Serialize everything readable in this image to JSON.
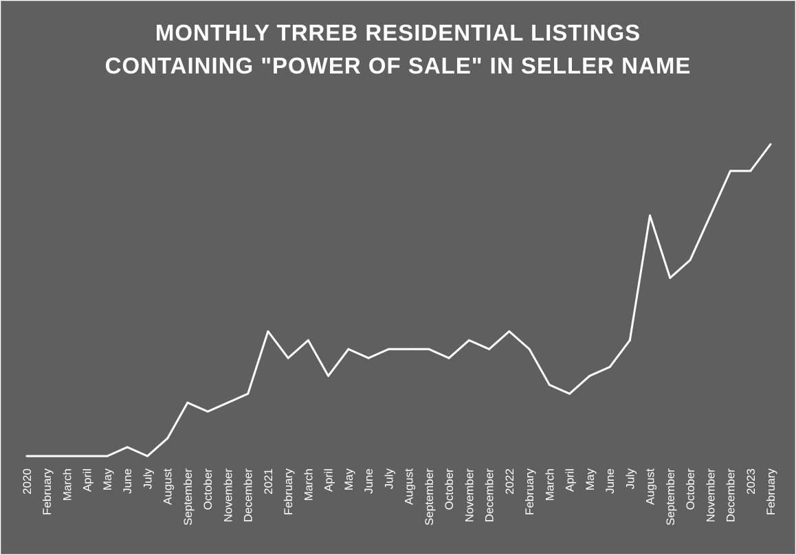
{
  "chart_data": {
    "type": "line",
    "title": [
      "MONTHLY TRREB RESIDENTIAL LISTINGS",
      "CONTAINING \"POWER OF SALE\" IN SELLER NAME"
    ],
    "xlabel": "",
    "ylabel": "",
    "categories": [
      "2020",
      "February",
      "March",
      "April",
      "May",
      "June",
      "July",
      "August",
      "September",
      "October",
      "November",
      "December",
      "2021",
      "February",
      "March",
      "April",
      "May",
      "June",
      "July",
      "August",
      "September",
      "October",
      "November",
      "December",
      "2022",
      "February",
      "March",
      "April",
      "May",
      "June",
      "July",
      "August",
      "September",
      "October",
      "November",
      "December",
      "2023",
      "February"
    ],
    "series": [
      {
        "values": [
          0,
          0,
          0,
          0,
          0,
          1,
          0,
          2,
          6,
          5,
          6,
          7,
          14,
          11,
          13,
          9,
          12,
          11,
          12,
          12,
          12,
          11,
          13,
          12,
          14,
          12,
          8,
          7,
          9,
          10,
          13,
          27,
          20,
          22,
          27,
          32,
          32,
          35
        ]
      }
    ],
    "ylim": [
      0,
      38
    ],
    "y_axis_labels_shown": false,
    "gridlines": false,
    "drop_lines": true,
    "legend": "none",
    "colors": {
      "background": "#5f5f5f",
      "line": "#ffffff",
      "text": "#ffffff"
    }
  }
}
